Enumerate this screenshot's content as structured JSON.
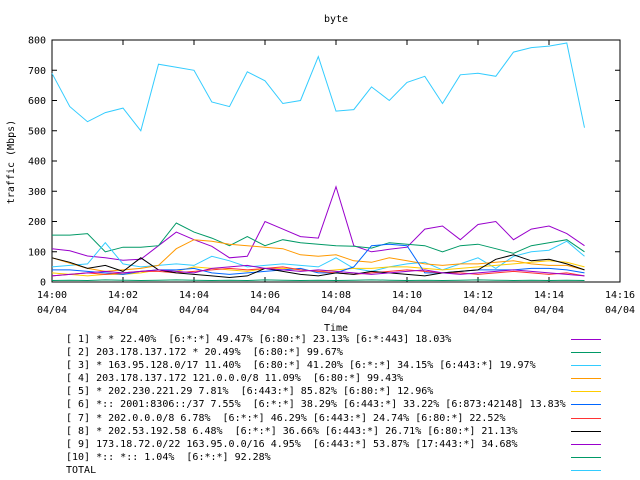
{
  "chart_data": {
    "type": "line",
    "title": "byte",
    "xlabel": "Time",
    "ylabel": "traffic (Mbps)",
    "ylim": [
      0,
      800
    ],
    "yticks": [
      "0",
      "100",
      "200",
      "300",
      "400",
      "500",
      "600",
      "700",
      "800"
    ],
    "xlim": [
      "14:00",
      "14:16"
    ],
    "xticks": [
      {
        "time": "14:00",
        "date": "04/04"
      },
      {
        "time": "14:02",
        "date": "04/04"
      },
      {
        "time": "14:04",
        "date": "04/04"
      },
      {
        "time": "14:06",
        "date": "04/04"
      },
      {
        "time": "14:08",
        "date": "04/04"
      },
      {
        "time": "14:10",
        "date": "04/04"
      },
      {
        "time": "14:12",
        "date": "04/04"
      },
      {
        "time": "14:14",
        "date": "04/04"
      },
      {
        "time": "14:16",
        "date": "04/04"
      }
    ],
    "grid": false,
    "legend_position": "bottom",
    "x": [
      "14:00",
      "14:00:30",
      "14:01",
      "14:01:30",
      "14:02",
      "14:02:30",
      "14:03",
      "14:03:30",
      "14:04",
      "14:04:30",
      "14:05",
      "14:05:30",
      "14:06",
      "14:06:30",
      "14:07",
      "14:07:30",
      "14:08",
      "14:08:30",
      "14:09",
      "14:09:30",
      "14:10",
      "14:10:30",
      "14:11",
      "14:11:30",
      "14:12",
      "14:12:30",
      "14:13",
      "14:13:30",
      "14:14",
      "14:14:30",
      "14:15"
    ],
    "series": [
      {
        "name": "[ 1] * * 22.40%  [6:*:*] 49.47% [6:80:*] 23.13% [6:*:443] 18.03%",
        "color": "#9900cc",
        "values": [
          110,
          103,
          86,
          80,
          72,
          75,
          120,
          165,
          140,
          118,
          80,
          85,
          200,
          175,
          150,
          145,
          315,
          120,
          100,
          108,
          115,
          175,
          185,
          140,
          190,
          200,
          140,
          175,
          185,
          160,
          120
        ]
      },
      {
        "name": "[ 2] 203.178.137.172 * 20.49%  [6:80:*] 99.67%",
        "color": "#009966",
        "values": [
          155,
          155,
          160,
          100,
          115,
          115,
          120,
          195,
          165,
          145,
          120,
          150,
          120,
          140,
          130,
          125,
          120,
          118,
          112,
          130,
          125,
          120,
          100,
          120,
          125,
          110,
          95,
          120,
          130,
          140,
          100
        ]
      },
      {
        "name": "[ 3] * 163.95.128.0/17 11.40%  [6:80:*] 41.20% [6:*:*] 34.15% [6:443:*] 19.97%",
        "color": "#33ccff",
        "values": [
          50,
          55,
          60,
          130,
          60,
          50,
          55,
          60,
          55,
          85,
          70,
          50,
          55,
          60,
          55,
          50,
          80,
          45,
          35,
          50,
          60,
          65,
          40,
          60,
          80,
          45,
          85,
          100,
          105,
          135,
          85
        ]
      },
      {
        "name": "[ 4] 203.178.137.172 121.0.0.0/8 11.09%  [6:80:*] 99.43%",
        "color": "#ff9900",
        "values": [
          80,
          62,
          45,
          35,
          40,
          45,
          55,
          110,
          140,
          135,
          125,
          120,
          115,
          110,
          90,
          85,
          90,
          70,
          65,
          80,
          70,
          60,
          55,
          60,
          60,
          65,
          70,
          60,
          55,
          55,
          40
        ]
      },
      {
        "name": "[ 5] * 202.230.221.29 7.81%  [6:443:*] 85.82% [6:80:*] 12.96%",
        "color": "#ffcc00",
        "values": [
          30,
          25,
          20,
          25,
          25,
          30,
          40,
          35,
          50,
          45,
          40,
          35,
          45,
          45,
          40,
          35,
          40,
          45,
          45,
          50,
          50,
          45,
          40,
          45,
          50,
          55,
          60,
          65,
          70,
          65,
          50
        ]
      },
      {
        "name": "[ 6] *:: 2001:8306::/37 7.55%  [6:*:*] 38.29% [6:443:*] 33.22% [6:873:42148] 13.83%",
        "color": "#0066ff",
        "values": [
          40,
          40,
          35,
          30,
          25,
          35,
          40,
          40,
          45,
          30,
          25,
          30,
          35,
          40,
          45,
          30,
          30,
          50,
          120,
          125,
          120,
          30,
          30,
          35,
          40,
          40,
          40,
          45,
          45,
          40,
          30
        ]
      },
      {
        "name": "[ 7] * 202.0.0.0/8 6.78%  [6:*:*] 46.29% [6:443:*] 24.74% [6:80:*] 22.52%",
        "color": "#ff3333",
        "values": [
          20,
          25,
          30,
          25,
          30,
          35,
          35,
          30,
          35,
          40,
          45,
          40,
          45,
          50,
          40,
          35,
          30,
          25,
          30,
          35,
          40,
          35,
          30,
          30,
          25,
          30,
          35,
          30,
          25,
          30,
          20
        ]
      },
      {
        "name": "[ 8] * 202.53.192.58 6.48%  [6:*:*] 36.66% [6:443:*] 26.71% [6:80:*] 21.13%",
        "color": "#000000",
        "values": [
          80,
          65,
          45,
          55,
          35,
          80,
          40,
          30,
          25,
          20,
          15,
          20,
          45,
          35,
          25,
          20,
          30,
          25,
          35,
          30,
          25,
          20,
          30,
          35,
          40,
          75,
          90,
          70,
          75,
          60,
          40
        ]
      },
      {
        "name": "[ 9] 173.18.72.0/22 163.95.0.0/16 4.95%  [6:443:*] 53.87% [17:443:*] 34.68%",
        "color": "#9900cc",
        "values": [
          20,
          25,
          30,
          35,
          30,
          35,
          40,
          35,
          30,
          45,
          50,
          55,
          45,
          40,
          35,
          40,
          35,
          30,
          25,
          30,
          35,
          40,
          30,
          25,
          30,
          35,
          40,
          35,
          30,
          25,
          20
        ]
      },
      {
        "name": "[10] *:: *:: 1.04%  [6:*:*] 92.28%",
        "color": "#009966",
        "values": [
          5,
          6,
          5,
          7,
          6,
          5,
          6,
          7,
          6,
          5,
          6,
          5,
          7,
          6,
          5,
          6,
          5,
          6,
          7,
          6,
          5,
          6,
          5,
          6,
          7,
          6,
          5,
          6,
          5,
          6,
          5
        ]
      },
      {
        "name": "TOTAL",
        "color": "#33ccff",
        "values": [
          690,
          580,
          530,
          560,
          575,
          500,
          720,
          710,
          700,
          595,
          580,
          695,
          665,
          590,
          600,
          745,
          565,
          570,
          645,
          600,
          660,
          680,
          590,
          685,
          690,
          680,
          760,
          775,
          780,
          790,
          510
        ]
      }
    ]
  }
}
